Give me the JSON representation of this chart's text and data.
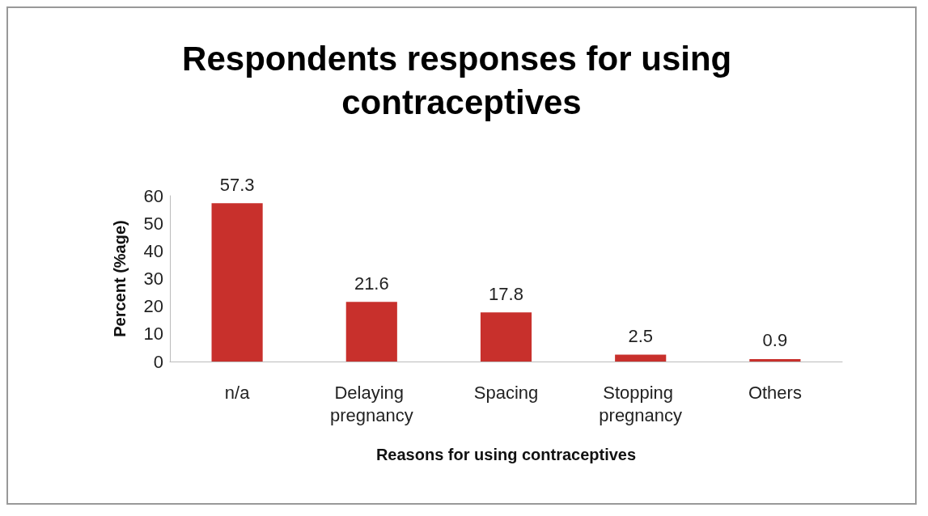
{
  "chart_data": {
    "type": "bar",
    "title": "Respondents responses for using contraceptives",
    "xlabel": "Reasons for using contraceptives",
    "ylabel": "Percent (%age)",
    "categories": [
      "n/a",
      "Delaying pregnancy",
      "Spacing",
      "Stopping pregnancy",
      "Others"
    ],
    "values": [
      57.3,
      21.6,
      17.8,
      2.5,
      0.9
    ],
    "color": "#c8302c",
    "data_labels": true,
    "ylim": [
      0,
      60
    ],
    "yticks": [
      0,
      10,
      20,
      30,
      40,
      50,
      60
    ],
    "grid": false
  }
}
